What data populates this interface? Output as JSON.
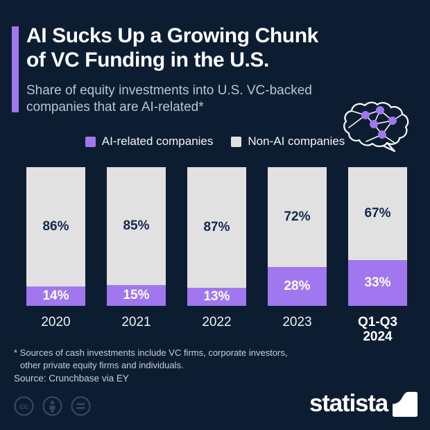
{
  "header": {
    "title_line1": "AI Sucks Up a Growing Chunk",
    "title_line2": "of VC Funding in the U.S.",
    "subtitle_line1": "Share of equity investments into U.S. VC-backed",
    "subtitle_line2": "companies that are AI-related*"
  },
  "colors": {
    "background": "#0d1d31",
    "accent_purple": "#a077ee",
    "bar_gray": "#e1e1e1",
    "navy_text": "#13294a"
  },
  "legend": {
    "items": [
      {
        "label": "AI-related companies",
        "color": "#a077ee"
      },
      {
        "label": "Non-AI companies",
        "color": "#e1e1e1"
      }
    ]
  },
  "chart_data": {
    "type": "bar",
    "stacked": true,
    "unit": "%",
    "title": "AI Sucks Up a Growing Chunk of VC Funding in the U.S.",
    "subtitle": "Share of equity investments into U.S. VC-backed companies that are AI-related*",
    "categories": [
      {
        "label": "2020",
        "bold": false,
        "wrap": false
      },
      {
        "label": "2021",
        "bold": false,
        "wrap": false
      },
      {
        "label": "2022",
        "bold": false,
        "wrap": false
      },
      {
        "label": "2023",
        "bold": false,
        "wrap": false
      },
      {
        "label": "Q1-Q3 2024",
        "bold": true,
        "wrap": true
      }
    ],
    "series": [
      {
        "name": "AI-related companies",
        "color": "#a077ee",
        "text_color": "#ffffff",
        "values": [
          14,
          15,
          13,
          28,
          33
        ]
      },
      {
        "name": "Non-AI companies",
        "color": "#e1e1e1",
        "text_color": "#13294a",
        "values": [
          86,
          85,
          87,
          72,
          67
        ]
      }
    ],
    "ylim": [
      0,
      100
    ],
    "grid": false,
    "legend_position": "top"
  },
  "footer": {
    "footnote_line1": "* Sources of cash investments include VC firms, corporate investors,",
    "footnote_line2": "other private equity firms and individuals.",
    "source": "Source: Crunchbase via EY"
  },
  "branding": {
    "logo_text": "statista",
    "license_icons": [
      "cc-icon",
      "attribution-icon",
      "no-derivatives-icon"
    ]
  }
}
